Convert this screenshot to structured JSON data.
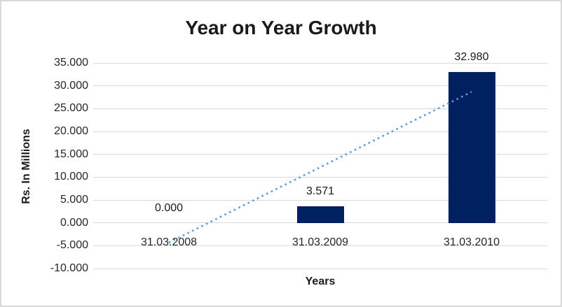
{
  "chart_data": {
    "type": "bar",
    "title": "Year on Year Growth",
    "xlabel": "Years",
    "ylabel": "Rs. In Millions",
    "categories": [
      "31.03.2008",
      "31.03.2009",
      "31.03.2010"
    ],
    "values": [
      0,
      3.571,
      32.98
    ],
    "value_labels": [
      "0.000",
      "3.571",
      "32.980"
    ],
    "ylim": [
      -10,
      35
    ],
    "ytick_values": [
      35,
      30,
      25,
      20,
      15,
      10,
      5,
      0,
      -5,
      -10
    ],
    "ytick_labels": [
      "35.000",
      "30.000",
      "25.000",
      "20.000",
      "15.000",
      "10.000",
      "5.000",
      "0.000",
      "-5.000",
      "-10.000"
    ],
    "grid": "horizontal",
    "legend": "none",
    "bar_color": "#002060",
    "trendline": {
      "type": "linear",
      "style": "dotted",
      "color": "#5B9BD5"
    }
  },
  "colors": {
    "background": "#FFFFFF",
    "frame_border": "#D9D9D9",
    "gridline": "#D9D9D9",
    "tick_text": "#262626",
    "title_text": "#1A1A1A"
  }
}
